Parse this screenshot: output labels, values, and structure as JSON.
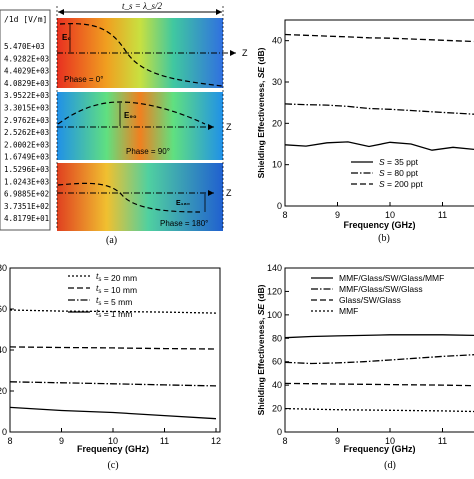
{
  "panel_a": {
    "legend_header": "/1d [V/m]",
    "legend_values": [
      "5.470E+03",
      "4.9282E+03",
      "4.4029E+03",
      "4.0829E+03",
      "3.9522E+03",
      "3.3015E+03",
      "2.9762E+03",
      "2.5262E+03",
      "2.0002E+03",
      "1.6749E+03",
      "1.5296E+03",
      "1.0243E+03",
      "6.9885E+02",
      "3.7351E+02",
      "4.8179E+01"
    ],
    "dimension_label": "t_s = λ_s/2",
    "field_labels": [
      "E₀",
      "E₉₀",
      "E₁₈₀"
    ],
    "phase_labels": [
      "Phase = 0°",
      "Phase = 90°",
      "Phase = 180°"
    ],
    "z_label": "Z",
    "caption": "(a)"
  },
  "charts": [
    {
      "chart_data": {
        "type": "line",
        "panel": "b",
        "caption": "(b)",
        "xlabel": "Frequency (GHz)",
        "ylabel": "Shielding Effectiveness, SE (dB)",
        "xlim": [
          8,
          11.6
        ],
        "ylim": [
          0,
          45
        ],
        "xticks": [
          8,
          9,
          10,
          11
        ],
        "yticks": [
          0,
          10,
          20,
          30,
          40
        ],
        "series": [
          {
            "name": "S = 35 ppt",
            "x": [
              8,
              8.4,
              8.8,
              9.2,
              9.6,
              10,
              10.4,
              10.8,
              11.2,
              11.6
            ],
            "y": [
              14.8,
              14.5,
              15.3,
              15.5,
              14.4,
              15.4,
              15.0,
              13.5,
              14.2,
              13.7
            ],
            "dash": "solid"
          },
          {
            "name": "S = 80 ppt",
            "x": [
              8,
              8.4,
              8.8,
              9.2,
              9.6,
              10,
              10.4,
              10.8,
              11.2,
              11.6
            ],
            "y": [
              24.7,
              24.5,
              24.4,
              24.1,
              23.6,
              23.4,
              23.1,
              22.8,
              22.5,
              22.2
            ],
            "dash": "dashdot"
          },
          {
            "name": "S = 200 ppt",
            "x": [
              8,
              8.4,
              8.8,
              9.2,
              9.6,
              10,
              10.4,
              10.8,
              11.2,
              11.6
            ],
            "y": [
              41.5,
              41.3,
              41.1,
              40.9,
              40.7,
              40.6,
              40.4,
              40.2,
              40.0,
              39.8
            ],
            "dash": "dash"
          }
        ],
        "legend_position": "bottom-right"
      }
    },
    {
      "chart_data": {
        "type": "line",
        "panel": "c",
        "caption": "(c)",
        "xlabel": "Frequency (GHz)",
        "ylabel": "",
        "xlim": [
          8,
          12
        ],
        "ylim": [
          0,
          80
        ],
        "xticks": [
          8,
          9,
          10,
          11,
          12
        ],
        "yticks": [
          0,
          20,
          40,
          60,
          80
        ],
        "series": [
          {
            "name": "t_s = 1 mm",
            "x": [
              8,
              9,
              10,
              11,
              12
            ],
            "y": [
              12,
              10.5,
              9.5,
              8,
              6.5
            ],
            "dash": "solid"
          },
          {
            "name": "t_s = 5 mm",
            "x": [
              8,
              9,
              10,
              11,
              12
            ],
            "y": [
              24.5,
              24,
              23.5,
              23,
              22.5
            ],
            "dash": "dashdot"
          },
          {
            "name": "t_s = 10 mm",
            "x": [
              8,
              9,
              10,
              11,
              12
            ],
            "y": [
              41.5,
              41.2,
              41,
              40.7,
              40.5
            ],
            "dash": "dash"
          },
          {
            "name": "t_s = 20 mm",
            "x": [
              8,
              9,
              10,
              11,
              12
            ],
            "y": [
              59.5,
              59,
              58.8,
              58.5,
              58
            ],
            "dash": "dot"
          }
        ],
        "legend_position": "top-right"
      }
    },
    {
      "chart_data": {
        "type": "line",
        "panel": "d",
        "caption": "(d)",
        "xlabel": "Frequency (GHz)",
        "ylabel": "Shielding Effectiveness, SE (dB)",
        "xlim": [
          8,
          11.6
        ],
        "ylim": [
          0,
          140
        ],
        "xticks": [
          8,
          9,
          10,
          11
        ],
        "yticks": [
          0,
          20,
          40,
          60,
          80,
          100,
          120,
          140
        ],
        "series": [
          {
            "name": "MMF",
            "x": [
              8,
              9,
              10,
              11,
              11.6
            ],
            "y": [
              20,
              19,
              18.5,
              18,
              17.5
            ],
            "dash": "dot"
          },
          {
            "name": "Glass/SW/Glass",
            "x": [
              8,
              9,
              10,
              11,
              11.6
            ],
            "y": [
              41.5,
              41,
              40.5,
              40,
              39.5
            ],
            "dash": "dash"
          },
          {
            "name": "MMF/Glass/SW/Glass",
            "x": [
              8,
              8.5,
              9,
              9.5,
              10,
              10.5,
              11,
              11.6
            ],
            "y": [
              59.5,
              58.5,
              59,
              60,
              61.5,
              63,
              64.5,
              66
            ],
            "dash": "dashdot"
          },
          {
            "name": "MMF/Glass/SW/Glass/MMF",
            "x": [
              8,
              8.5,
              9,
              9.5,
              10,
              10.5,
              11,
              11.6
            ],
            "y": [
              80.5,
              81.5,
              82,
              82.5,
              83,
              83,
              83,
              82.5
            ],
            "dash": "solid"
          }
        ],
        "legend_position": "top-right"
      }
    }
  ]
}
